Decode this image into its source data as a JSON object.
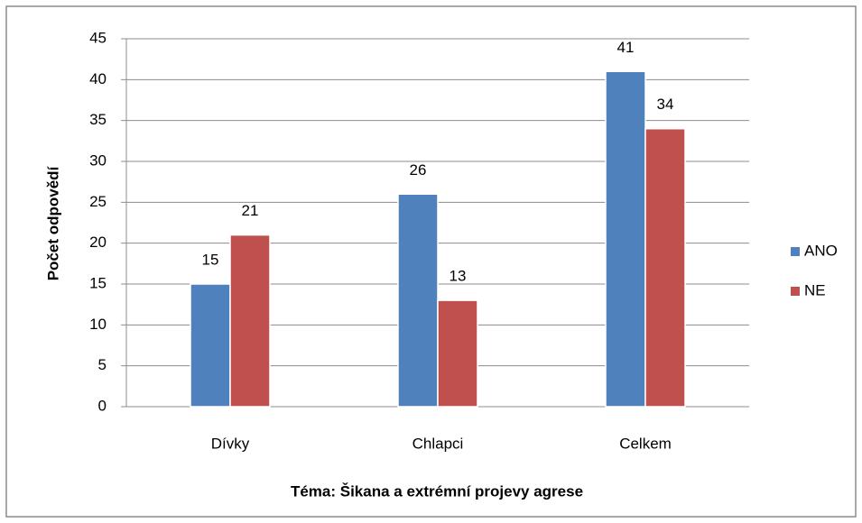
{
  "chart_data": {
    "type": "bar",
    "categories": [
      "Dívky",
      "Chlapci",
      "Celkem"
    ],
    "series": [
      {
        "name": "ANO",
        "color": "#4f81bd",
        "values": [
          15,
          26,
          41
        ]
      },
      {
        "name": "NE",
        "color": "#c0504d",
        "values": [
          21,
          13,
          34
        ]
      }
    ],
    "ylabel": "Počet odpovědí",
    "xlabel": "Téma: Šikana a extrémní projevy agrese",
    "ylim": [
      0,
      45
    ],
    "yticks": [
      0,
      5,
      10,
      15,
      20,
      25,
      30,
      35,
      40,
      45
    ],
    "grid": true,
    "legend": "right"
  }
}
